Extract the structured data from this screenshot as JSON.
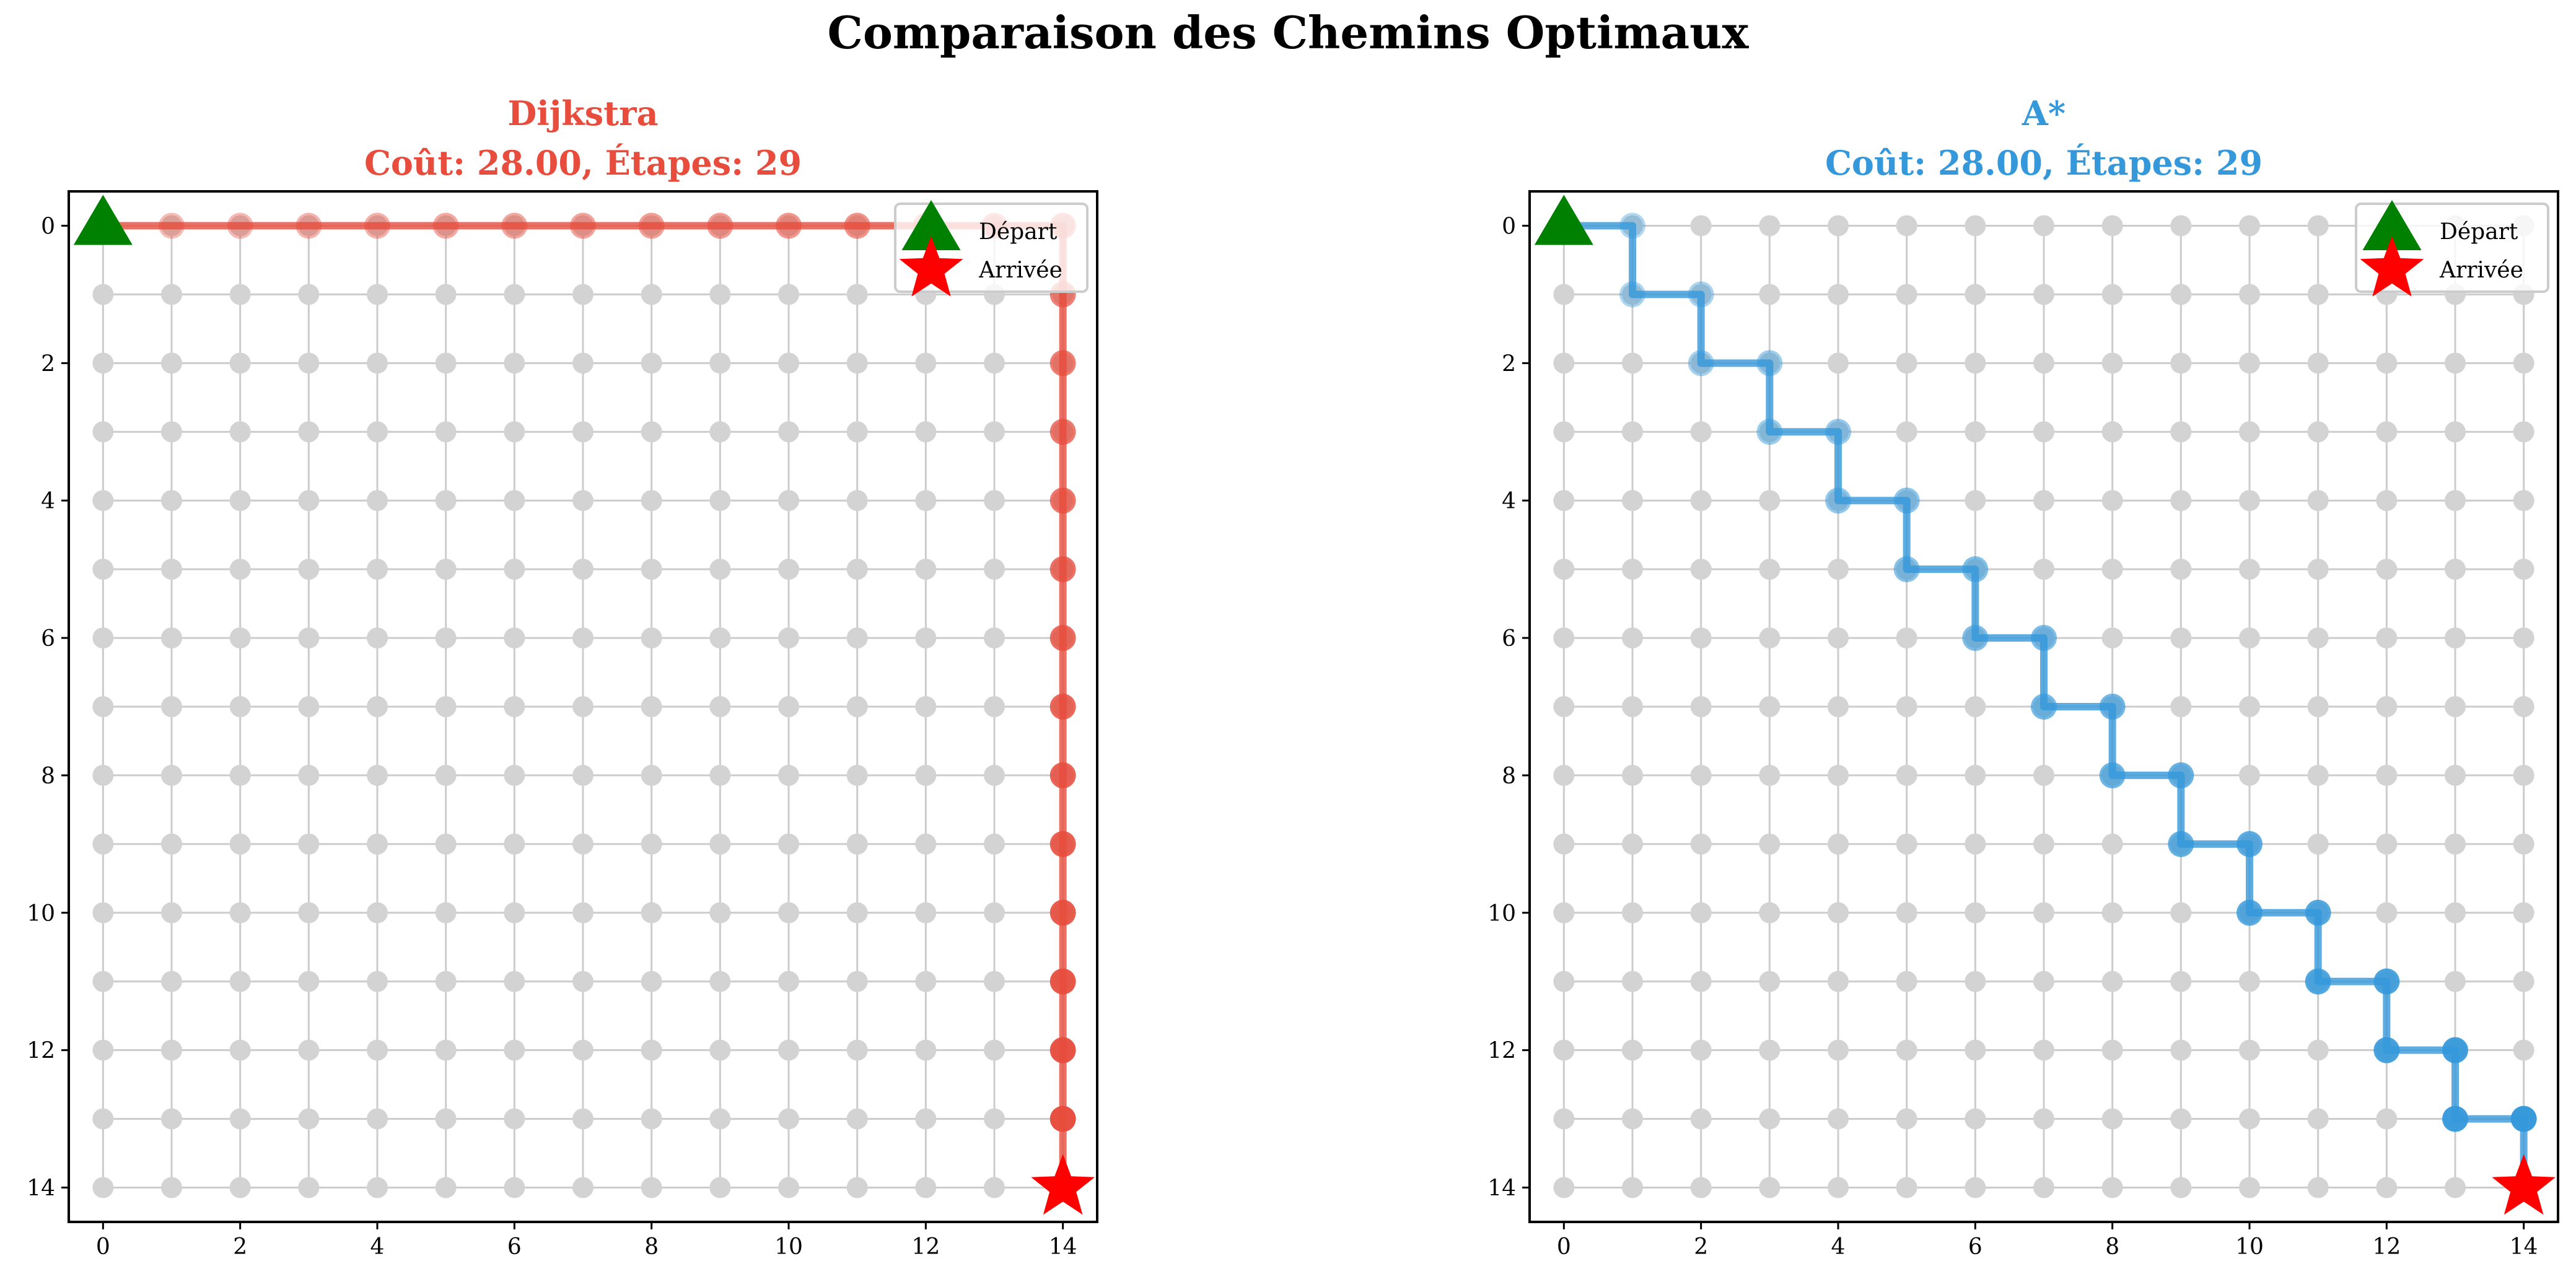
{
  "title": "Comparaison des Chemins Optimaux",
  "chart_data": [
    {
      "type": "line",
      "title": "Dijkstra",
      "subtitle": "Coût: 28.00, Étapes: 29",
      "color": "#e74c3c",
      "xlim": [
        -0.5,
        14.5
      ],
      "ylim": [
        14.5,
        -0.5
      ],
      "y_inverted": true,
      "grid": true,
      "grid_size": 15,
      "node_color": "#d3d3d3",
      "xticks": [
        0,
        2,
        4,
        6,
        8,
        10,
        12,
        14
      ],
      "yticks": [
        0,
        2,
        4,
        6,
        8,
        10,
        12,
        14
      ],
      "path": [
        [
          0,
          0
        ],
        [
          1,
          0
        ],
        [
          2,
          0
        ],
        [
          3,
          0
        ],
        [
          4,
          0
        ],
        [
          5,
          0
        ],
        [
          6,
          0
        ],
        [
          7,
          0
        ],
        [
          8,
          0
        ],
        [
          9,
          0
        ],
        [
          10,
          0
        ],
        [
          11,
          0
        ],
        [
          12,
          0
        ],
        [
          13,
          0
        ],
        [
          14,
          0
        ],
        [
          14,
          1
        ],
        [
          14,
          2
        ],
        [
          14,
          3
        ],
        [
          14,
          4
        ],
        [
          14,
          5
        ],
        [
          14,
          6
        ],
        [
          14,
          7
        ],
        [
          14,
          8
        ],
        [
          14,
          9
        ],
        [
          14,
          10
        ],
        [
          14,
          11
        ],
        [
          14,
          12
        ],
        [
          14,
          13
        ],
        [
          14,
          14
        ]
      ],
      "start": [
        0,
        0
      ],
      "goal": [
        14,
        14
      ],
      "legend": {
        "placement": "top-right",
        "entries": [
          {
            "label": "Départ",
            "marker": "triangle",
            "color": "#008000"
          },
          {
            "label": "Arrivée",
            "marker": "star",
            "color": "#ff0000"
          }
        ]
      }
    },
    {
      "type": "line",
      "title": "A*",
      "subtitle": "Coût: 28.00, Étapes: 29",
      "color": "#3498db",
      "xlim": [
        -0.5,
        14.5
      ],
      "ylim": [
        14.5,
        -0.5
      ],
      "y_inverted": true,
      "grid": true,
      "grid_size": 15,
      "node_color": "#d3d3d3",
      "xticks": [
        0,
        2,
        4,
        6,
        8,
        10,
        12,
        14
      ],
      "yticks": [
        0,
        2,
        4,
        6,
        8,
        10,
        12,
        14
      ],
      "path": [
        [
          0,
          0
        ],
        [
          1,
          0
        ],
        [
          1,
          1
        ],
        [
          2,
          1
        ],
        [
          2,
          2
        ],
        [
          3,
          2
        ],
        [
          3,
          3
        ],
        [
          4,
          3
        ],
        [
          4,
          4
        ],
        [
          5,
          4
        ],
        [
          5,
          5
        ],
        [
          6,
          5
        ],
        [
          6,
          6
        ],
        [
          7,
          6
        ],
        [
          7,
          7
        ],
        [
          8,
          7
        ],
        [
          8,
          8
        ],
        [
          9,
          8
        ],
        [
          9,
          9
        ],
        [
          10,
          9
        ],
        [
          10,
          10
        ],
        [
          11,
          10
        ],
        [
          11,
          11
        ],
        [
          12,
          11
        ],
        [
          12,
          12
        ],
        [
          13,
          12
        ],
        [
          13,
          13
        ],
        [
          14,
          13
        ],
        [
          14,
          14
        ]
      ],
      "start": [
        0,
        0
      ],
      "goal": [
        14,
        14
      ],
      "legend": {
        "placement": "top-right",
        "entries": [
          {
            "label": "Départ",
            "marker": "triangle",
            "color": "#008000"
          },
          {
            "label": "Arrivée",
            "marker": "star",
            "color": "#ff0000"
          }
        ]
      }
    }
  ]
}
